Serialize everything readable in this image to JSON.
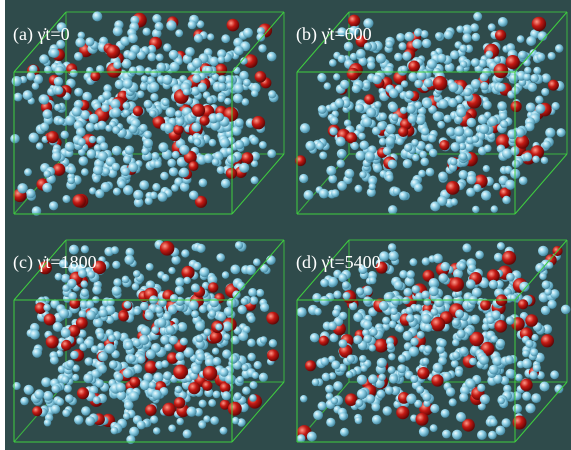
{
  "panels": [
    {
      "label": "(a) γ̇t=0"
    },
    {
      "label": "(b) γ̇t=600"
    },
    {
      "label": "(c) γ̇t=1800"
    },
    {
      "label": "(d) γ̇t=5400"
    }
  ]
}
